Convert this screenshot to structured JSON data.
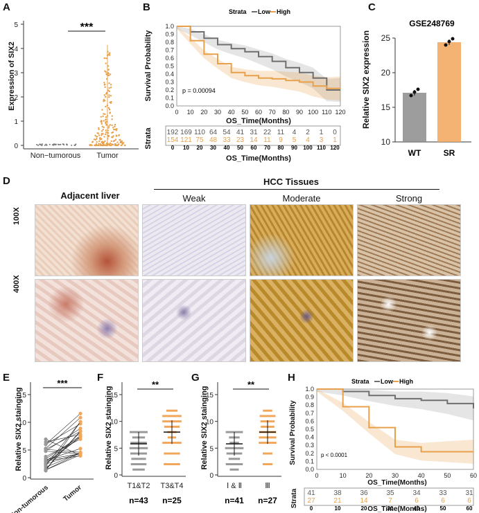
{
  "panel_labels": {
    "A": "A",
    "B": "B",
    "C": "C",
    "D": "D",
    "E": "E",
    "F": "F",
    "G": "G",
    "H": "H"
  },
  "colors": {
    "low": "#6e6e6e",
    "high": "#e8a04a",
    "tumor_bar": "#f2a65a",
    "wt_bar": "#8c8c8c"
  },
  "panelA": {
    "sig": "***",
    "chart_data": {
      "type": "scatter",
      "title": "",
      "xlabel": "",
      "ylabel": "Expression of SIX2",
      "categories": [
        "Non−tumorous",
        "Tumor"
      ],
      "ylim": [
        0,
        5
      ],
      "yticks": [
        "0",
        "1",
        "2",
        "3",
        "4",
        "5"
      ]
    }
  },
  "panelB": {
    "legend": {
      "title": "Strata",
      "low": "Low",
      "high": "High"
    },
    "pval": "p = 0.00094",
    "chart_data": {
      "type": "line",
      "ylabel": "Survival Probability",
      "xlabel": "OS_Time(Months)",
      "xlim": [
        0,
        120
      ],
      "ylim": [
        0,
        1
      ],
      "xticks": [
        "0",
        "10",
        "20",
        "30",
        "40",
        "50",
        "60",
        "70",
        "80",
        "90",
        "100",
        "110",
        "120"
      ],
      "yticks": [
        "0.0",
        "0.1",
        "0.2",
        "0.3",
        "0.4",
        "0.5",
        "0.6",
        "0.7",
        "0.8",
        "0.9",
        "1.0"
      ],
      "series": [
        {
          "name": "Low",
          "x": [
            0,
            10,
            20,
            30,
            40,
            50,
            60,
            70,
            80,
            90,
            100,
            110,
            120
          ],
          "y": [
            1.0,
            0.93,
            0.85,
            0.77,
            0.72,
            0.68,
            0.62,
            0.56,
            0.48,
            0.42,
            0.35,
            0.2,
            0.2
          ]
        },
        {
          "name": "High",
          "x": [
            0,
            10,
            20,
            30,
            40,
            50,
            60,
            70,
            80,
            90,
            100,
            110,
            120
          ],
          "y": [
            1.0,
            0.82,
            0.65,
            0.53,
            0.42,
            0.38,
            0.35,
            0.34,
            0.32,
            0.3,
            0.25,
            0.22,
            0.22
          ]
        }
      ]
    },
    "risk": {
      "label": "Strata",
      "low": [
        "192",
        "169",
        "110",
        "64",
        "54",
        "41",
        "31",
        "22",
        "11",
        "4",
        "2",
        "1",
        "0"
      ],
      "high": [
        "154",
        "121",
        "75",
        "48",
        "33",
        "23",
        "14",
        "11",
        "9",
        "5",
        "4",
        "3",
        "1"
      ],
      "xticks": [
        "0",
        "10",
        "20",
        "30",
        "40",
        "50",
        "60",
        "70",
        "80",
        "90",
        "100",
        "110",
        "120"
      ],
      "xlabel": "OS_Time(Months)"
    }
  },
  "panelC": {
    "title": "GSE248769",
    "chart_data": {
      "type": "bar",
      "categories": [
        "WT",
        "SR"
      ],
      "values": [
        17.1,
        24.4
      ],
      "ylabel": "Relative SIX2 expression",
      "ylim": [
        10,
        25
      ],
      "yticks": [
        "10",
        "15",
        "20",
        "25"
      ]
    }
  },
  "panelD": {
    "adjacent": "Adjacent liver",
    "hcc": "HCC Tissues",
    "cols": [
      "Weak",
      "Moderate",
      "Strong"
    ],
    "rows": [
      "100X",
      "400X"
    ]
  },
  "panelE": {
    "sig": "***",
    "ylabel": "Relative SIX2 stainging",
    "cats": [
      "Non-tumorous",
      "Tumor"
    ],
    "yticks": [
      "0",
      "5",
      "10",
      "15"
    ]
  },
  "panelF": {
    "sig": "**",
    "ylabel": "Relative SIX2 stainging",
    "cats": [
      "T1&T2",
      "T3&T4"
    ],
    "n": [
      "n=43",
      "n=25"
    ],
    "yticks": [
      "0",
      "5",
      "10",
      "15"
    ]
  },
  "panelG": {
    "sig": "**",
    "ylabel": "Relative SIX2 stainging",
    "cats": [
      "Ⅰ & Ⅱ",
      "Ⅲ"
    ],
    "n": [
      "n=41",
      "n=27"
    ],
    "yticks": [
      "0",
      "5",
      "10",
      "15"
    ]
  },
  "panelH": {
    "legend": {
      "title": "Strata",
      "low": "Low",
      "high": "High"
    },
    "pval": "p < 0.0001",
    "chart_data": {
      "type": "line",
      "ylabel": "Survival Probability",
      "xlabel": "OS_Time(Months)",
      "xlim": [
        0,
        60
      ],
      "ylim": [
        0,
        1
      ],
      "xticks": [
        "0",
        "10",
        "20",
        "30",
        "40",
        "50",
        "60"
      ],
      "yticks": [
        "0.0",
        "0.1",
        "0.2",
        "0.3",
        "0.4",
        "0.5",
        "0.6",
        "0.7",
        "0.8",
        "0.9",
        "1.0"
      ],
      "series": [
        {
          "name": "Low",
          "x": [
            0,
            10,
            20,
            30,
            40,
            50,
            60
          ],
          "y": [
            1.0,
            0.97,
            0.92,
            0.88,
            0.86,
            0.82,
            0.76
          ]
        },
        {
          "name": "High",
          "x": [
            0,
            10,
            20,
            30,
            40,
            50,
            60
          ],
          "y": [
            1.0,
            0.78,
            0.52,
            0.28,
            0.22,
            0.22,
            0.22
          ]
        }
      ]
    },
    "risk": {
      "label": "Strata",
      "low": [
        "41",
        "38",
        "36",
        "35",
        "34",
        "33",
        "31"
      ],
      "high": [
        "27",
        "21",
        "14",
        "7",
        "6",
        "6",
        "6"
      ],
      "xticks": [
        "0",
        "10",
        "20",
        "30",
        "40",
        "50",
        "60"
      ],
      "xlabel": "OS_Time(Months)"
    }
  }
}
